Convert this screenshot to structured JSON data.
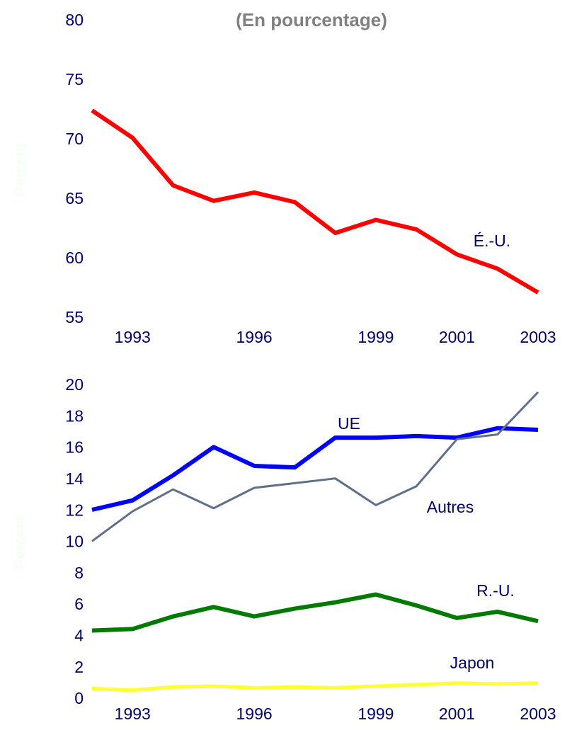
{
  "chart_data": [
    {
      "type": "line",
      "subtitle": "(En pourcentage)",
      "ylabel": "Percent",
      "x": [
        1992,
        1993,
        1994,
        1995,
        1996,
        1997,
        1998,
        1999,
        2000,
        2001,
        2002,
        2003
      ],
      "xlim": [
        1992,
        2003
      ],
      "xticks": [
        1993,
        1996,
        1999,
        2001,
        2003
      ],
      "ylim": [
        55,
        80
      ],
      "yticks": [
        55,
        60,
        65,
        70,
        75,
        80
      ],
      "series": [
        {
          "name": "É.-U.",
          "color": "#ff0000",
          "values": [
            72.5,
            70.2,
            66.2,
            64.9,
            65.6,
            64.8,
            62.2,
            63.3,
            62.5,
            60.4,
            59.2,
            57.2
          ]
        }
      ]
    },
    {
      "type": "line",
      "ylabel": "Percent",
      "x": [
        1992,
        1993,
        1994,
        1995,
        1996,
        1997,
        1998,
        1999,
        2000,
        2001,
        2002,
        2003
      ],
      "xlim": [
        1992,
        2003
      ],
      "xticks": [
        1993,
        1996,
        1999,
        2001,
        2003
      ],
      "ylim": [
        0,
        20
      ],
      "yticks": [
        0,
        2,
        4,
        6,
        8,
        10,
        12,
        14,
        16,
        18,
        20
      ],
      "series": [
        {
          "name": "UE",
          "color": "#0000ff",
          "values": [
            12.1,
            12.7,
            14.3,
            16.1,
            14.9,
            14.8,
            16.7,
            16.7,
            16.8,
            16.7,
            17.3,
            17.2
          ]
        },
        {
          "name": "Autres",
          "color": "#5f7088",
          "values": [
            10.1,
            12.0,
            13.4,
            12.2,
            13.5,
            13.8,
            14.1,
            12.4,
            13.6,
            16.6,
            16.9,
            19.6
          ]
        },
        {
          "name": "R.-U.",
          "color": "#007a00",
          "values": [
            4.4,
            4.5,
            5.3,
            5.9,
            5.3,
            5.8,
            6.2,
            6.7,
            6.0,
            5.2,
            5.6,
            5.0
          ]
        },
        {
          "name": "Japon",
          "color": "#ffff33",
          "values": [
            0.7,
            0.6,
            0.8,
            0.85,
            0.75,
            0.8,
            0.75,
            0.85,
            0.95,
            1.05,
            1.0,
            1.05
          ]
        }
      ]
    }
  ]
}
